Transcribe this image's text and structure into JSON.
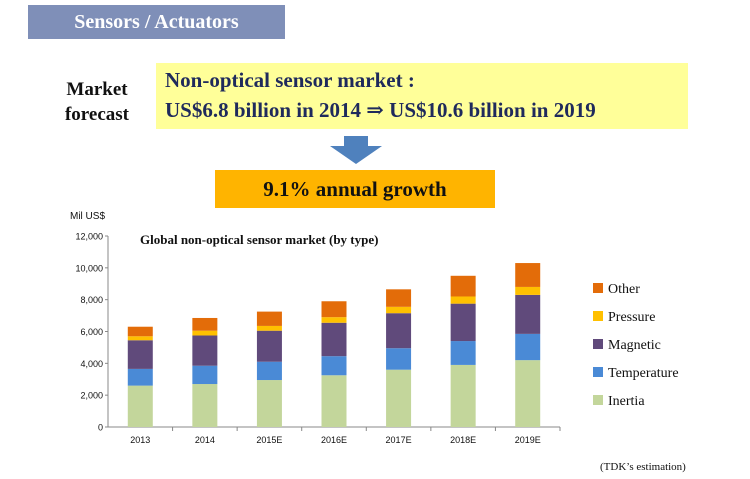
{
  "header": {
    "title": "Sensors / Actuators"
  },
  "market_label": {
    "line1": "Market",
    "line2": "forecast"
  },
  "highlight": {
    "line1": "Non-optical sensor market :",
    "line2": "US$6.8 billion  in 2014 ⇒ US$10.6 billion in 2019"
  },
  "growth": {
    "label": "9.1% annual growth"
  },
  "note": "(TDK’s estimation)",
  "colors": {
    "arrow": "#4f81bd",
    "title_bg": "#7f8fb8",
    "highlight_bg": "#ffff99",
    "growth_bg": "#ffb400"
  },
  "chart_data": {
    "type": "bar",
    "stacked": true,
    "title": "Global non-optical sensor market (by type)",
    "ylabel": "Mil US$",
    "categories": [
      "2013",
      "2014",
      "2015E",
      "2016E",
      "2017E",
      "2018E",
      "2019E"
    ],
    "ylim": [
      0,
      12000
    ],
    "yticks": [
      "0",
      "2,000",
      "4,000",
      "6,000",
      "8,000",
      "10,000",
      "12,000"
    ],
    "ytick_values": [
      0,
      2000,
      4000,
      6000,
      8000,
      10000,
      12000
    ],
    "legend_position": "right",
    "series": [
      {
        "name": "Inertia",
        "color": "#c3d69b",
        "values": [
          2600,
          2700,
          2950,
          3250,
          3600,
          3900,
          4200
        ]
      },
      {
        "name": "Temperature",
        "color": "#4a8ad6",
        "values": [
          1050,
          1150,
          1150,
          1200,
          1350,
          1500,
          1650
        ]
      },
      {
        "name": "Magnetic",
        "color": "#604a7b",
        "values": [
          1800,
          1900,
          1950,
          2100,
          2200,
          2350,
          2450
        ]
      },
      {
        "name": "Pressure",
        "color": "#ffc000",
        "values": [
          250,
          300,
          300,
          350,
          400,
          450,
          500
        ]
      },
      {
        "name": "Other",
        "color": "#e36c09",
        "values": [
          600,
          800,
          900,
          1000,
          1100,
          1300,
          1500
        ]
      }
    ],
    "legend_order": [
      "Other",
      "Pressure",
      "Magnetic",
      "Temperature",
      "Inertia"
    ]
  }
}
